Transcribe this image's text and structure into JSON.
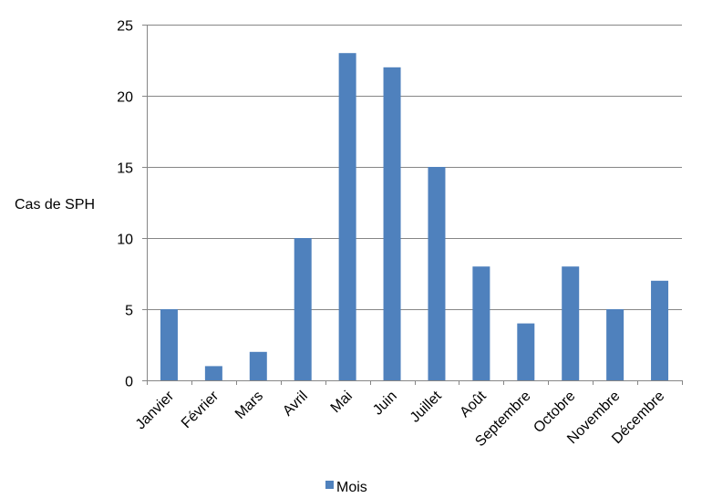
{
  "chart_data": {
    "type": "bar",
    "title": "",
    "xlabel": "",
    "ylabel": "Cas de SPH",
    "categories": [
      "Janvier",
      "Février",
      "Mars",
      "Avril",
      "Mai",
      "Juin",
      "Juillet",
      "Août",
      "Septembre",
      "Octobre",
      "Novembre",
      "Décembre"
    ],
    "series": [
      {
        "name": "Mois",
        "values": [
          5,
          1,
          2,
          10,
          23,
          22,
          15,
          8,
          4,
          8,
          5,
          7
        ],
        "color": "#4F81BD"
      }
    ],
    "ylim": [
      0,
      25
    ],
    "yticks": [
      0,
      5,
      10,
      15,
      20,
      25
    ],
    "grid": true,
    "legend_position": "bottom",
    "x_tick_rotation": -45
  }
}
